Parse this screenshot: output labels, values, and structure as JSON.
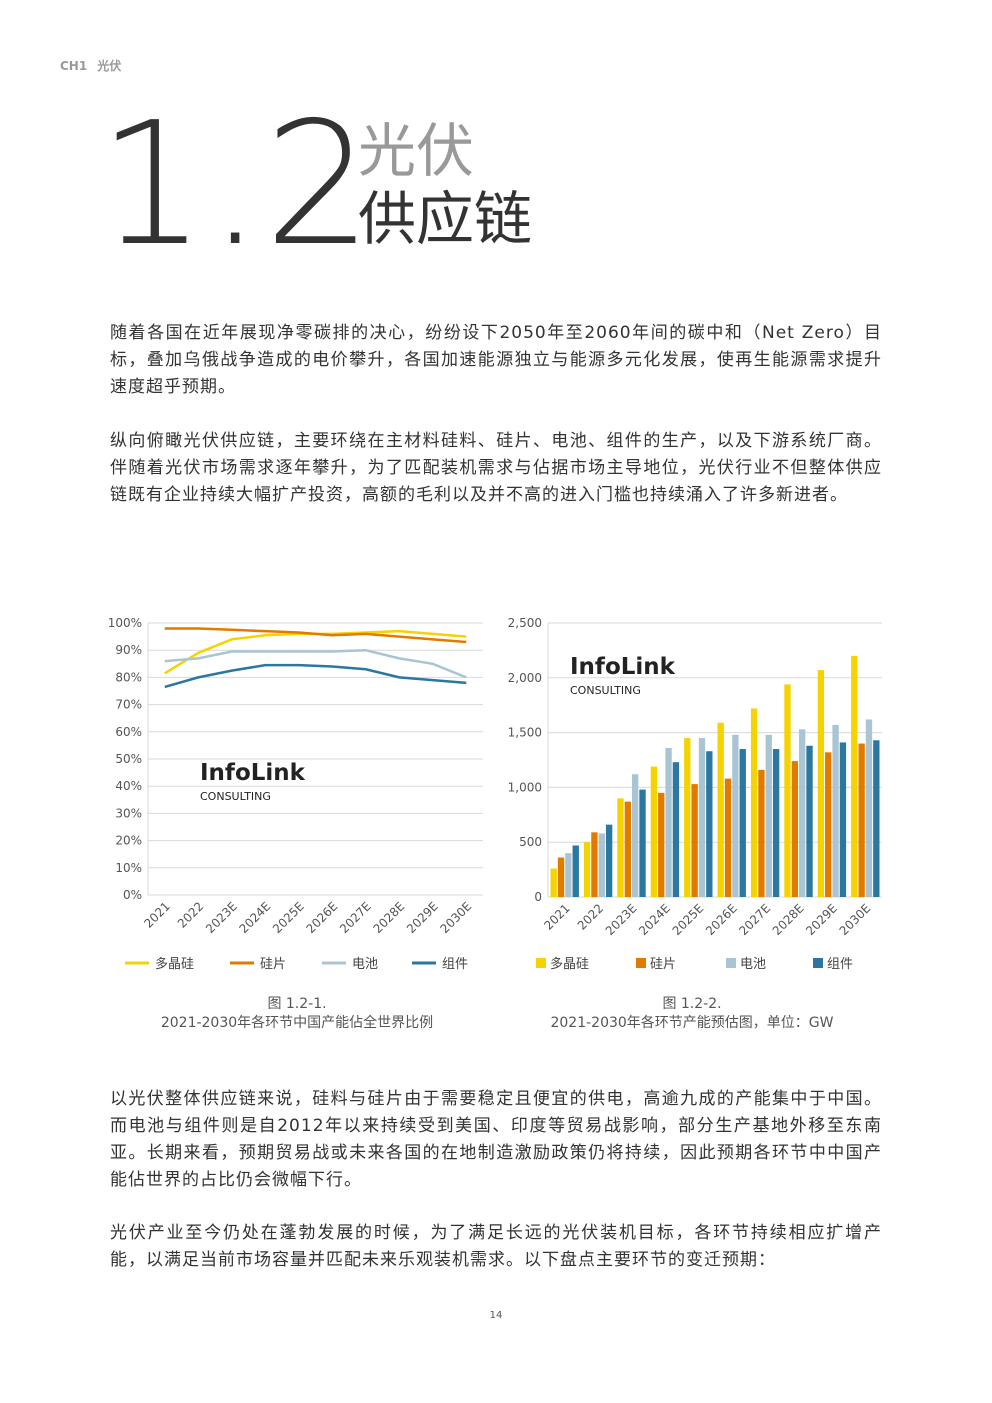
{
  "header": {
    "chapter": "CH1",
    "chapter_title": "光伏"
  },
  "section": {
    "number": "1.2",
    "title_line1": "光伏",
    "title_line2": "供应链"
  },
  "paragraphs": [
    "随着各国在近年展现净零碳排的决心，纷纷设下2050年至2060年间的碳中和（Net Zero）目标，叠加乌俄战争造成的电价攀升，各国加速能源独立与能源多元化发展，使再生能源需求提升速度超乎预期。",
    "纵向俯瞰光伏供应链，主要环绕在主材料硅料、硅片、电池、组件的生产，以及下游系统厂商。伴随着光伏市场需求逐年攀升，为了匹配装机需求与佔据市场主导地位，光伏行业不但整体供应链既有企业持续大幅扩产投资，高额的毛利以及并不高的进入门槛也持续涌入了许多新进者。"
  ],
  "paragraphs_after": [
    "以光伏整体供应链来说，硅料与硅片由于需要稳定且便宜的供电，高逾九成的产能集中于中国。而电池与组件则是自2012年以来持续受到美国、印度等贸易战影响，部分生产基地外移至东南亚。长期来看，预期贸易战或未来各国的在地制造激励政策仍将持续，因此预期各环节中中国产能佔世界的占比仍会微幅下行。",
    "光伏产业至今仍处在蓬勃发展的时候，为了满足长远的光伏装机目标，各环节持续相应扩增产能，以满足当前市场容量并匹配未来乐观装机需求。以下盘点主要环节的变迁预期："
  ],
  "page_number": "14",
  "chart_data": [
    {
      "type": "line",
      "figure_label": "图 1.2-1.",
      "caption": "2021-2030年各环节中国产能佔全世界比例",
      "watermark": "InfoLink",
      "watermark_sub": "CONSULTING",
      "categories": [
        "2021",
        "2022",
        "2023E",
        "2024E",
        "2025E",
        "2026E",
        "2027E",
        "2028E",
        "2029E",
        "2030E"
      ],
      "ylim": [
        0,
        100
      ],
      "yticks": [
        {
          "value": 0,
          "label": "0%"
        },
        {
          "value": 10,
          "label": "10%"
        },
        {
          "value": 20,
          "label": "20%"
        },
        {
          "value": 30,
          "label": "30%"
        },
        {
          "value": 40,
          "label": "40%"
        },
        {
          "value": 50,
          "label": "50%"
        },
        {
          "value": 60,
          "label": "60%"
        },
        {
          "value": 70,
          "label": "70%"
        },
        {
          "value": 80,
          "label": "80%"
        },
        {
          "value": 90,
          "label": "90%"
        },
        {
          "value": 100,
          "label": "100%"
        }
      ],
      "grid": true,
      "series": [
        {
          "name": "多晶硅",
          "color": "#f5d300",
          "values": [
            81.5,
            89,
            94,
            95.5,
            96,
            96,
            96.5,
            97,
            96,
            95
          ]
        },
        {
          "name": "硅片",
          "color": "#e07b00",
          "values": [
            98,
            98,
            97.5,
            97,
            96.5,
            95.5,
            96,
            95,
            94,
            93
          ]
        },
        {
          "name": "电池",
          "color": "#a9c4d3",
          "values": [
            86,
            87,
            89.5,
            89.5,
            89.5,
            89.5,
            90,
            87,
            85,
            80
          ]
        },
        {
          "name": "组件",
          "color": "#2a77a0",
          "values": [
            76.5,
            80,
            82.5,
            84.5,
            84.5,
            84,
            83,
            80,
            79,
            78
          ]
        }
      ]
    },
    {
      "type": "bar",
      "figure_label": "图 1.2-2.",
      "caption": "2021-2030年各环节产能预估图，单位：GW",
      "watermark": "InfoLink",
      "watermark_sub": "CONSULTING",
      "categories": [
        "2021",
        "2022",
        "2023E",
        "2024E",
        "2025E",
        "2026E",
        "2027E",
        "2028E",
        "2029E",
        "2030E"
      ],
      "ylim": [
        0,
        2500
      ],
      "yticks": [
        0,
        500,
        {
          "value": 1000,
          "label": "1,000"
        },
        {
          "value": 1500,
          "label": "1,500"
        },
        {
          "value": 2000,
          "label": "2,000"
        },
        {
          "value": 2500,
          "label": "2,500"
        }
      ],
      "grid": true,
      "series": [
        {
          "name": "多晶硅",
          "color": "#f5d300",
          "values": [
            260,
            500,
            900,
            1190,
            1450,
            1590,
            1720,
            1940,
            2070,
            2200
          ]
        },
        {
          "name": "硅片",
          "color": "#e07b00",
          "values": [
            360,
            590,
            870,
            950,
            1030,
            1080,
            1160,
            1240,
            1320,
            1400
          ]
        },
        {
          "name": "电池",
          "color": "#a9c4d3",
          "values": [
            400,
            580,
            1120,
            1360,
            1450,
            1480,
            1480,
            1530,
            1570,
            1620
          ]
        },
        {
          "name": "组件",
          "color": "#2a77a0",
          "values": [
            470,
            660,
            980,
            1230,
            1330,
            1350,
            1350,
            1380,
            1410,
            1430
          ]
        }
      ]
    }
  ]
}
